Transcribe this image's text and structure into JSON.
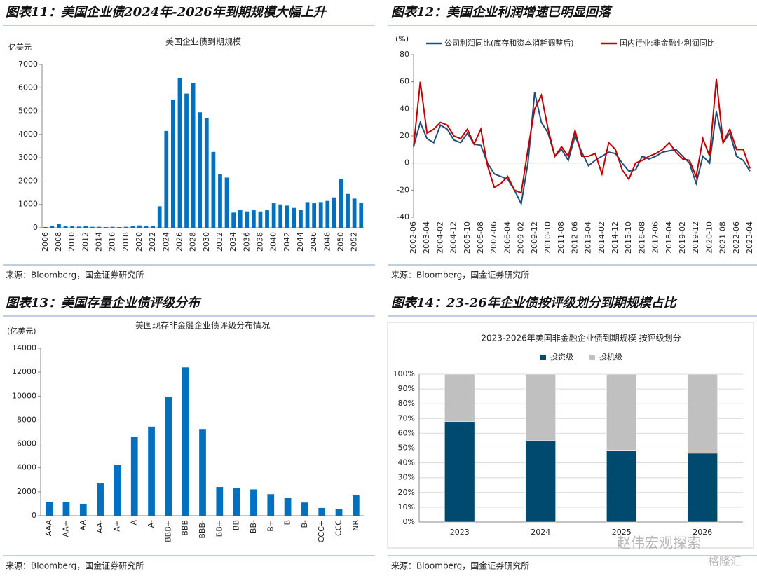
{
  "watermark": [
    "赵伟宏观探索",
    "格隆汇"
  ],
  "chart_data": [
    {
      "type": "bar",
      "heading": "图表11：美国企业债2024年-2026年到期规模大幅上升",
      "title": "美国企业债到期规模",
      "y_label": "亿美元",
      "categories": [
        "2006",
        null,
        "2008",
        null,
        "2010",
        null,
        "2012",
        null,
        "2014",
        null,
        "2016",
        null,
        "2018",
        null,
        "2020",
        null,
        "2022",
        null,
        "2024",
        null,
        "2026",
        null,
        "2028",
        null,
        "2030",
        null,
        "2032",
        null,
        "2034",
        null,
        "2036",
        null,
        "2038",
        null,
        "2040",
        null,
        "2042",
        null,
        "2044",
        null,
        "2046",
        null,
        "2048",
        null,
        "2050",
        null,
        "2052",
        null
      ],
      "values": [
        30,
        60,
        150,
        70,
        60,
        50,
        60,
        40,
        40,
        30,
        40,
        30,
        40,
        60,
        100,
        80,
        60,
        920,
        4150,
        5500,
        6400,
        5750,
        6200,
        4950,
        4700,
        3250,
        2300,
        2150,
        650,
        750,
        700,
        750,
        700,
        750,
        1050,
        1000,
        950,
        850,
        750,
        1100,
        1050,
        1100,
        1150,
        1300,
        2100,
        1450,
        1250,
        1050
      ],
      "color": "#0070c0",
      "ylim": [
        0,
        7000
      ],
      "yticks": [
        0,
        1000,
        2000,
        3000,
        4000,
        5000,
        6000,
        7000
      ],
      "source": "来源：Bloomberg，国金证券研究所"
    },
    {
      "type": "line",
      "heading": "图表12：美国企业利润增速已明显回落",
      "y_label": "(%)",
      "legend": "top",
      "categories": [
        "2002-06",
        null,
        "2003-04",
        null,
        "2004-02",
        null,
        "2004-12",
        null,
        "2005-10",
        null,
        "2006-08",
        null,
        "2007-06",
        null,
        "2008-04",
        null,
        "2009-02",
        null,
        "2009-12",
        null,
        "2010-10",
        null,
        "2011-08",
        null,
        "2012-06",
        null,
        "2013-04",
        null,
        "2014-02",
        null,
        "2014-12",
        null,
        "2015-10",
        null,
        "2016-08",
        null,
        "2017-06",
        null,
        "2018-04",
        null,
        "2019-02",
        null,
        "2019-12",
        null,
        "2020-10",
        null,
        "2021-08",
        null,
        "2022-06",
        null,
        "2023-04"
      ],
      "series": [
        {
          "name": "公司利润同比(库存和资本消耗调整后)",
          "color": "#1f4e79",
          "values": [
            12,
            30,
            18,
            15,
            28,
            25,
            17,
            15,
            22,
            14,
            13,
            0,
            -8,
            -10,
            -12,
            -20,
            -30,
            0,
            52,
            30,
            22,
            5,
            10,
            2,
            20,
            8,
            -2,
            2,
            5,
            8,
            7,
            0,
            -6,
            -5,
            5,
            3,
            5,
            8,
            9,
            10,
            5,
            0,
            -15,
            5,
            0,
            38,
            15,
            22,
            5,
            2,
            -6
          ]
        },
        {
          "name": "国内行业:非金融业利润同比",
          "color": "#c00000",
          "values": [
            12,
            60,
            22,
            25,
            30,
            28,
            20,
            18,
            25,
            14,
            25,
            -2,
            -18,
            -15,
            -10,
            -20,
            -22,
            10,
            40,
            50,
            25,
            5,
            12,
            5,
            24,
            5,
            5,
            7,
            -8,
            15,
            10,
            -5,
            -12,
            0,
            2,
            5,
            7,
            10,
            15,
            8,
            3,
            2,
            -10,
            18,
            5,
            62,
            15,
            25,
            10,
            10,
            -4
          ]
        }
      ],
      "ylim": [
        -40,
        80
      ],
      "yticks": [
        -40,
        -20,
        0,
        20,
        40,
        60,
        80
      ],
      "source": "来源：Bloomberg，国金证券研究所"
    },
    {
      "type": "bar",
      "heading": "图表13：美国存量企业债评级分布",
      "title": "美国现存非金融企业债评级分布情况",
      "y_label": "(亿美元)",
      "categories": [
        "AAA",
        "AA+",
        "AA",
        "AA-",
        "A+",
        "A",
        "A-",
        "BBB+",
        "BBB",
        "BBB-",
        "BB+",
        "BB",
        "BB-",
        "B+",
        "B",
        "B-",
        "CCC+",
        "CCC",
        "NR"
      ],
      "values": [
        1150,
        1150,
        1000,
        2750,
        4250,
        6600,
        7450,
        9950,
        12400,
        7250,
        2400,
        2300,
        2200,
        1800,
        1500,
        1100,
        650,
        550,
        1700
      ],
      "color": "#0070c0",
      "ylim": [
        0,
        14000
      ],
      "yticks": [
        0,
        2000,
        4000,
        6000,
        8000,
        10000,
        12000,
        14000
      ],
      "source": "来源：Bloomberg，国金证券研究所"
    },
    {
      "type": "stacked_bar",
      "heading": "图表14：23-26年企业债按评级划分到期规模占比",
      "title": "2023-2026年美国非金融企业债到期规模 按评级划分",
      "legend": "top",
      "categories": [
        "2023",
        "2024",
        "2025",
        "2026"
      ],
      "series": [
        {
          "name": "投资级",
          "color": "#004a70",
          "values": [
            68,
            55,
            48.5,
            46.5
          ]
        },
        {
          "name": "投机级",
          "color": "#c0c0c0",
          "values": [
            32,
            45,
            51.5,
            53.5
          ]
        }
      ],
      "ylim": [
        0,
        100
      ],
      "yticks": [
        {
          "value": 0,
          "label": "0%"
        },
        {
          "value": 10,
          "label": "10%"
        },
        {
          "value": 20,
          "label": "20%"
        },
        {
          "value": 30,
          "label": "30%"
        },
        {
          "value": 40,
          "label": "40%"
        },
        {
          "value": 50,
          "label": "50%"
        },
        {
          "value": 60,
          "label": "60%"
        },
        {
          "value": 70,
          "label": "70%"
        },
        {
          "value": 80,
          "label": "80%"
        },
        {
          "value": 90,
          "label": "90%"
        },
        {
          "value": 100,
          "label": "100%"
        }
      ],
      "source": "来源：Bloomberg，国金证券研究所"
    }
  ]
}
